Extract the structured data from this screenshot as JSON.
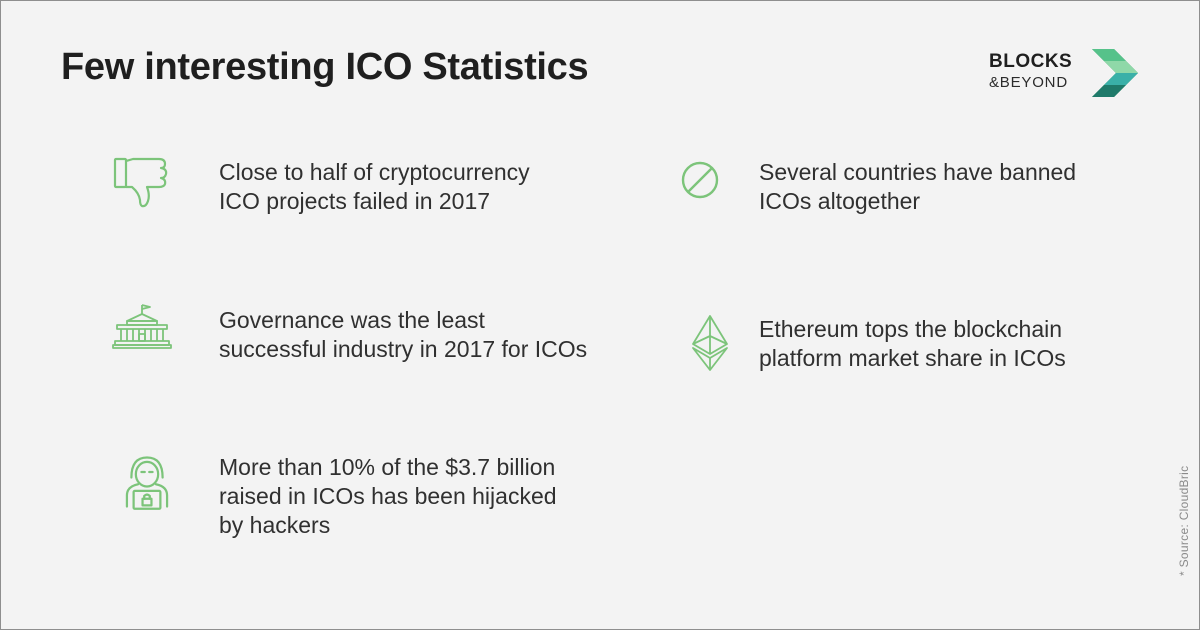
{
  "title": "Few interesting ICO Statistics",
  "logo": {
    "line1": "BLOCKS",
    "line2": "&BEYOND",
    "colors": [
      "#2f8f5a",
      "#56c28a",
      "#3ab0a8"
    ]
  },
  "accent_color": "#7cc47a",
  "stats": [
    {
      "icon": "thumbs-down-icon",
      "lines": [
        "Close to half of cryptocurrency",
        "ICO projects failed in 2017"
      ]
    },
    {
      "icon": "prohibited-icon",
      "lines": [
        "Several countries have banned",
        "ICOs altogether"
      ]
    },
    {
      "icon": "government-building-icon",
      "lines": [
        "Governance was the least",
        "successful industry in 2017 for ICOs"
      ]
    },
    {
      "icon": "ethereum-icon",
      "lines": [
        "Ethereum tops the blockchain",
        "platform market share in ICOs"
      ]
    },
    {
      "icon": "hacker-icon",
      "lines": [
        "More than 10% of the $3.7 billion",
        "raised in ICOs has been hijacked",
        "by hackers"
      ]
    }
  ],
  "source": "* Source:  CloudBric"
}
